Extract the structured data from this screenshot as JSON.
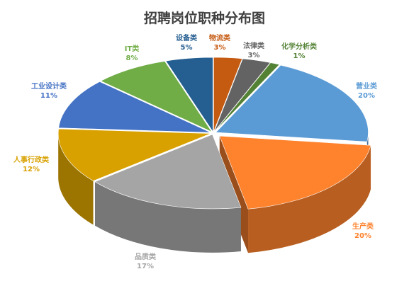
{
  "chart_data": {
    "type": "pie",
    "title": "招聘岗位职种分布图",
    "categories": [
      "物流类",
      "法律类",
      "化学分析类",
      "营业类",
      "生产类",
      "品质类",
      "人事行政类",
      "工业设计类",
      "IT类",
      "设备类"
    ],
    "values": [
      3,
      3,
      1,
      20,
      20,
      17,
      12,
      11,
      8,
      5
    ],
    "value_labels": [
      "3%",
      "3%",
      "1%",
      "20%",
      "20%",
      "17%",
      "12%",
      "11%",
      "8%",
      "5%"
    ],
    "colors": [
      "#c55a11",
      "#636363",
      "#548235",
      "#5b9bd5",
      "#ff822d",
      "#a5a5a5",
      "#d8a100",
      "#4472c4",
      "#70ad47",
      "#255e91"
    ],
    "legend": "none",
    "style": "3d-exploded"
  }
}
